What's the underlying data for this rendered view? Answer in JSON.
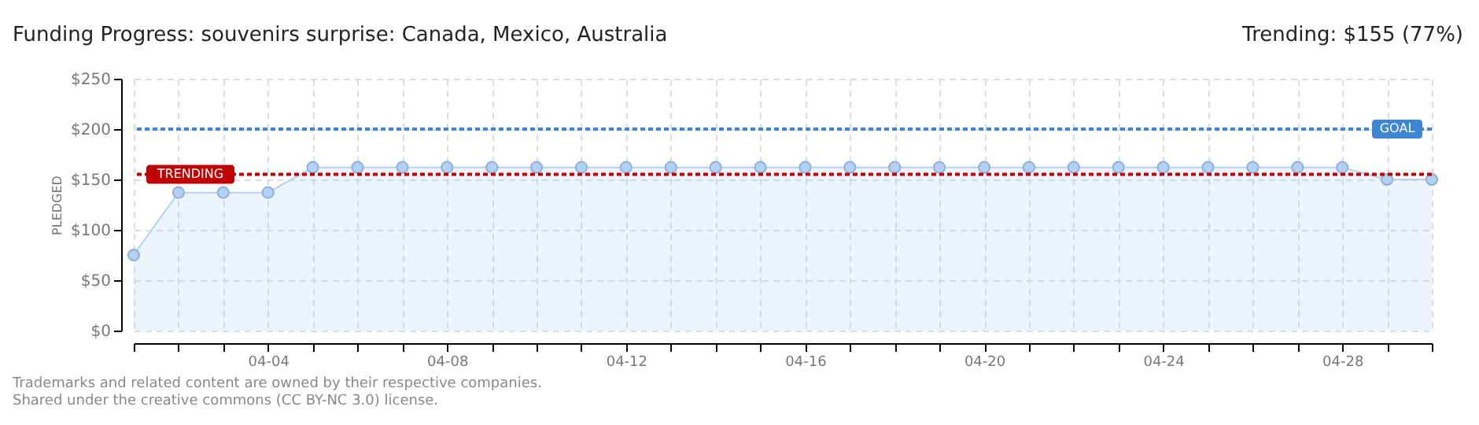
{
  "chart_data": {
    "type": "area",
    "title": "Funding Progress: souvenirs surprise: Canada, Mexico, Australia",
    "annotations": [
      "Trending:  $155 (77%)",
      "Trademarks and related content are owned by their respective companies.",
      "Shared under the creative commons (CC BY-NC 3.0) license."
    ],
    "ylabel": "PLEDGED",
    "categories": [
      null,
      null,
      null,
      "04-04",
      null,
      null,
      null,
      "04-08",
      null,
      null,
      null,
      "04-12",
      null,
      null,
      null,
      "04-16",
      null,
      null,
      null,
      "04-20",
      null,
      null,
      null,
      "04-24",
      null,
      null,
      null,
      "04-28",
      null,
      null
    ],
    "series": [
      {
        "color": "#b3d1f2",
        "values": [
          75,
          137,
          137,
          137,
          162,
          162,
          162,
          162,
          162,
          162,
          162,
          162,
          162,
          162,
          162,
          162,
          162,
          162,
          162,
          162,
          162,
          162,
          162,
          162,
          162,
          162,
          162,
          162,
          150,
          150
        ]
      }
    ],
    "ylim": [
      0,
      250
    ],
    "yticks": [
      {
        "value": 0,
        "label": "$0"
      },
      {
        "value": 50,
        "label": "$50"
      },
      {
        "value": 100,
        "label": "$100"
      },
      {
        "value": 150,
        "label": "$150"
      },
      {
        "value": 200,
        "label": "$200"
      },
      {
        "value": 250,
        "label": "$250"
      }
    ],
    "ref_lines": [
      {
        "axis": "y",
        "value": 200,
        "label": "GOAL",
        "color": "#3d86d4",
        "line_style": "dotted"
      },
      {
        "axis": "y",
        "value": 155,
        "label": "TRENDING",
        "color": "#c00000",
        "line_style": "dotted"
      }
    ],
    "grid": true,
    "marker": "circle"
  }
}
